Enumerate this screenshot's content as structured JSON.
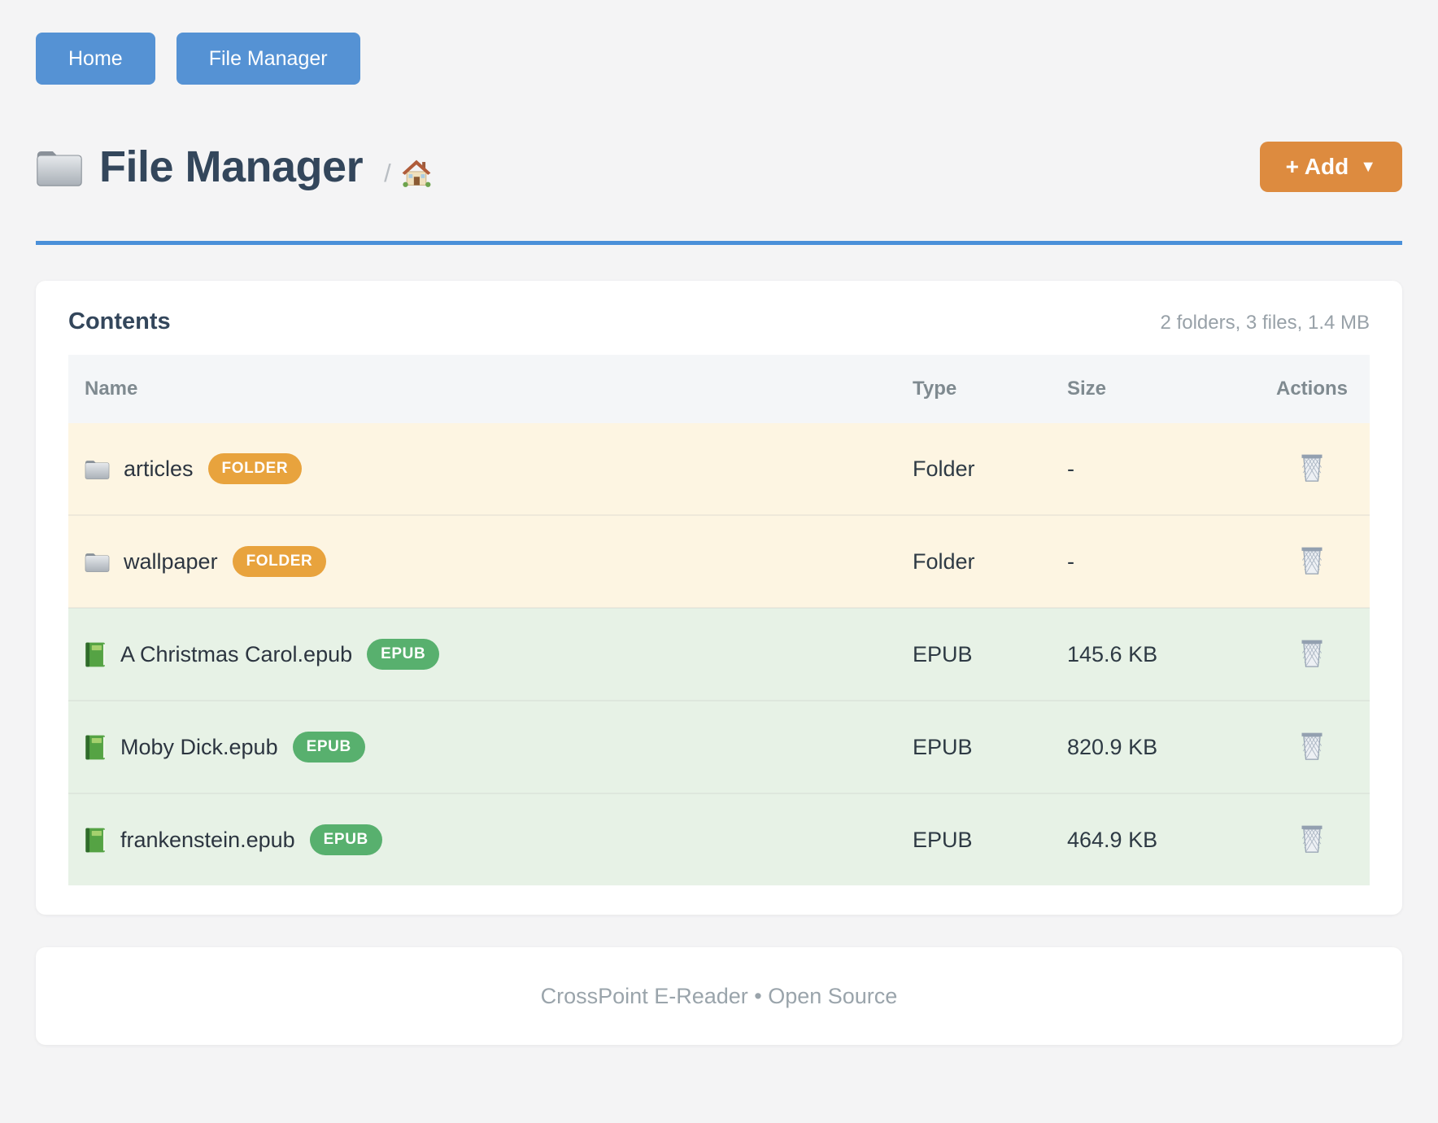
{
  "nav": {
    "home_label": "Home",
    "file_manager_label": "File Manager"
  },
  "header": {
    "title": "File Manager",
    "title_icon": "folder-icon",
    "breadcrumb_separator": "/",
    "breadcrumb_home_icon": "home-house-icon",
    "add_button_label": "+ Add",
    "add_button_caret": "▼"
  },
  "contents": {
    "title": "Contents",
    "summary": "2 folders, 3 files, 1.4 MB",
    "columns": [
      "Name",
      "Type",
      "Size",
      "Actions"
    ],
    "rows": [
      {
        "name": "articles",
        "badge": "FOLDER",
        "type": "Folder",
        "size": "-",
        "kind": "folder",
        "icon": "folder-icon",
        "action_icon": "trash-icon"
      },
      {
        "name": "wallpaper",
        "badge": "FOLDER",
        "type": "Folder",
        "size": "-",
        "kind": "folder",
        "icon": "folder-icon",
        "action_icon": "trash-icon"
      },
      {
        "name": "A Christmas Carol.epub",
        "badge": "EPUB",
        "type": "EPUB",
        "size": "145.6 KB",
        "kind": "epub",
        "icon": "book-icon",
        "action_icon": "trash-icon"
      },
      {
        "name": "Moby Dick.epub",
        "badge": "EPUB",
        "type": "EPUB",
        "size": "820.9 KB",
        "kind": "epub",
        "icon": "book-icon",
        "action_icon": "trash-icon"
      },
      {
        "name": "frankenstein.epub",
        "badge": "EPUB",
        "type": "EPUB",
        "size": "464.9 KB",
        "kind": "epub",
        "icon": "book-icon",
        "action_icon": "trash-icon"
      }
    ]
  },
  "footer": {
    "text": "CrossPoint E-Reader • Open Source"
  },
  "colors": {
    "nav_blue": "#5592d4",
    "accent_rule_blue": "#4a90d9",
    "add_orange": "#dd8b3f",
    "badge_orange": "#e8a33d",
    "badge_green": "#58b06e",
    "folder_row_bg": "#fdf5e2",
    "epub_row_bg": "#e7f2e6",
    "page_bg": "#f4f4f5",
    "title_color": "#33465b",
    "muted_text": "#98a1a8"
  }
}
